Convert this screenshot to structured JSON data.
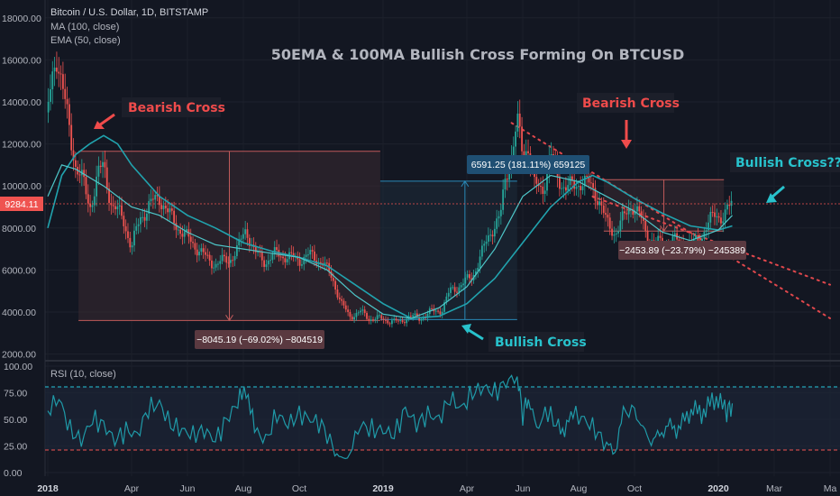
{
  "chart_data": {
    "type": "line",
    "header": {
      "symbol": "Bitcoin / U.S. Dollar, 1D, BITSTAMP",
      "indicators": [
        "MA (100, close)",
        "EMA (50, close)"
      ]
    },
    "title": "50EMA & 100MA Bullish Cross Forming On BTCUSD",
    "price_axis": {
      "ticks": [
        "18000.00",
        "16000.00",
        "14000.00",
        "12000.00",
        "10000.00",
        "8000.00",
        "6000.00",
        "4000.00",
        "2000.00"
      ],
      "values": [
        18000,
        16000,
        14000,
        12000,
        10000,
        8000,
        6000,
        4000,
        2000
      ],
      "range": [
        1800,
        18600
      ],
      "current_price": "9284.11",
      "current_value": 9284.11
    },
    "rsi_axis": {
      "ticks": [
        "100.00",
        "75.00",
        "50.00",
        "25.00",
        "0.00"
      ],
      "values": [
        100,
        75,
        50,
        25,
        0
      ],
      "upper_band": 80,
      "lower_band": 20
    },
    "rsi_label": "RSI (10, close)",
    "time_axis": {
      "labels": [
        "2018",
        "Apr",
        "Jun",
        "Aug",
        "Oct",
        "2019",
        "Apr",
        "Jun",
        "Aug",
        "Oct",
        "2020",
        "Mar",
        "Ma"
      ],
      "months": [
        0,
        3,
        5,
        7,
        9,
        12,
        15,
        17,
        19,
        21,
        24,
        26,
        28
      ]
    },
    "series": [
      {
        "kind": "candles",
        "close": [
          [
            0,
            13500
          ],
          [
            0.3,
            16500
          ],
          [
            0.6,
            14000
          ],
          [
            1.0,
            11000
          ],
          [
            1.3,
            10000
          ],
          [
            1.5,
            9000
          ],
          [
            1.8,
            10500
          ],
          [
            2.0,
            11000
          ],
          [
            2.3,
            9000
          ],
          [
            2.7,
            8500
          ],
          [
            3.0,
            7000
          ],
          [
            3.3,
            8500
          ],
          [
            3.6,
            9000
          ],
          [
            4.0,
            9500
          ],
          [
            4.3,
            8700
          ],
          [
            4.7,
            8000
          ],
          [
            5.0,
            7500
          ],
          [
            5.4,
            7000
          ],
          [
            5.7,
            6500
          ],
          [
            6.0,
            6300
          ],
          [
            6.5,
            6500
          ],
          [
            6.8,
            7000
          ],
          [
            7.1,
            8000
          ],
          [
            7.4,
            6800
          ],
          [
            7.8,
            6400
          ],
          [
            8.2,
            6800
          ],
          [
            8.6,
            6600
          ],
          [
            9.0,
            6500
          ],
          [
            9.4,
            6700
          ],
          [
            9.8,
            6400
          ],
          [
            10.2,
            5600
          ],
          [
            10.5,
            4400
          ],
          [
            10.8,
            3800
          ],
          [
            11.2,
            4000
          ],
          [
            11.5,
            3700
          ],
          [
            11.8,
            3700
          ],
          [
            12.2,
            3600
          ],
          [
            12.6,
            3500
          ],
          [
            12.9,
            3800
          ],
          [
            13.3,
            3700
          ],
          [
            13.7,
            4000
          ],
          [
            14.1,
            4100
          ],
          [
            14.4,
            5000
          ],
          [
            14.8,
            5300
          ],
          [
            15.2,
            5700
          ],
          [
            15.6,
            7000
          ],
          [
            15.9,
            8000
          ],
          [
            16.2,
            8500
          ],
          [
            16.4,
            10500
          ],
          [
            16.6,
            11500
          ],
          [
            16.8,
            13000
          ],
          [
            17.0,
            11500
          ],
          [
            17.2,
            12000
          ],
          [
            17.4,
            10000
          ],
          [
            17.7,
            9800
          ],
          [
            18.0,
            11500
          ],
          [
            18.2,
            10500
          ],
          [
            18.5,
            10000
          ],
          [
            18.8,
            9900
          ],
          [
            19.1,
            10300
          ],
          [
            19.4,
            10000
          ],
          [
            19.7,
            9500
          ],
          [
            20.0,
            8200
          ],
          [
            20.3,
            7800
          ],
          [
            20.6,
            8400
          ],
          [
            20.9,
            9200
          ],
          [
            21.2,
            8500
          ],
          [
            21.5,
            7500
          ],
          [
            21.8,
            7300
          ],
          [
            22.1,
            7200
          ],
          [
            22.4,
            7400
          ],
          [
            22.7,
            7300
          ],
          [
            23.0,
            7200
          ],
          [
            23.3,
            7500
          ],
          [
            23.6,
            8000
          ],
          [
            23.9,
            8800
          ],
          [
            24.2,
            8400
          ],
          [
            24.5,
            9300
          ]
        ]
      },
      {
        "kind": "moving-average-100",
        "points": [
          [
            0,
            8000
          ],
          [
            0.5,
            10500
          ],
          [
            1.0,
            11500
          ],
          [
            1.5,
            12000
          ],
          [
            2.0,
            12400
          ],
          [
            2.5,
            12000
          ],
          [
            3.0,
            11000
          ],
          [
            4.0,
            9500
          ],
          [
            5.0,
            8600
          ],
          [
            6.0,
            8000
          ],
          [
            7.0,
            7300
          ],
          [
            8.0,
            6900
          ],
          [
            9.0,
            6600
          ],
          [
            10.0,
            6200
          ],
          [
            11.0,
            5300
          ],
          [
            12.0,
            4400
          ],
          [
            13.0,
            3700
          ],
          [
            14.0,
            3800
          ],
          [
            15.0,
            4400
          ],
          [
            16.0,
            5600
          ],
          [
            17.0,
            7300
          ],
          [
            18.0,
            9000
          ],
          [
            19.0,
            10200
          ],
          [
            19.5,
            10500
          ],
          [
            20.0,
            10200
          ],
          [
            21.0,
            9400
          ],
          [
            22.0,
            8700
          ],
          [
            23.0,
            8100
          ],
          [
            24.0,
            7900
          ],
          [
            24.5,
            8100
          ]
        ]
      },
      {
        "kind": "ema-50",
        "points": [
          [
            0,
            9500
          ],
          [
            0.5,
            11000
          ],
          [
            1.0,
            10800
          ],
          [
            2.0,
            10000
          ],
          [
            3.0,
            9000
          ],
          [
            4.0,
            8600
          ],
          [
            5.0,
            7800
          ],
          [
            6.0,
            7200
          ],
          [
            7.0,
            7000
          ],
          [
            8.0,
            6800
          ],
          [
            9.0,
            6600
          ],
          [
            10.0,
            6000
          ],
          [
            11.0,
            4800
          ],
          [
            12.0,
            3900
          ],
          [
            13.0,
            3700
          ],
          [
            14.0,
            4200
          ],
          [
            15.0,
            5200
          ],
          [
            16.0,
            7000
          ],
          [
            17.0,
            9500
          ],
          [
            18.0,
            10500
          ],
          [
            19.0,
            10200
          ],
          [
            20.0,
            9500
          ],
          [
            21.0,
            8800
          ],
          [
            22.0,
            7800
          ],
          [
            23.0,
            7400
          ],
          [
            24.0,
            7900
          ],
          [
            24.5,
            8600
          ]
        ]
      },
      {
        "kind": "rsi",
        "points": [
          [
            0,
            58
          ],
          [
            0.4,
            70
          ],
          [
            0.8,
            40
          ],
          [
            1.2,
            30
          ],
          [
            1.6,
            50
          ],
          [
            2.0,
            45
          ],
          [
            2.4,
            30
          ],
          [
            2.8,
            40
          ],
          [
            3.2,
            35
          ],
          [
            3.6,
            60
          ],
          [
            4.0,
            65
          ],
          [
            4.4,
            45
          ],
          [
            4.8,
            40
          ],
          [
            5.2,
            35
          ],
          [
            5.6,
            40
          ],
          [
            6.0,
            30
          ],
          [
            6.4,
            50
          ],
          [
            6.8,
            65
          ],
          [
            7.1,
            80
          ],
          [
            7.4,
            40
          ],
          [
            7.8,
            30
          ],
          [
            8.2,
            55
          ],
          [
            8.6,
            45
          ],
          [
            9.0,
            55
          ],
          [
            9.4,
            50
          ],
          [
            9.8,
            45
          ],
          [
            10.2,
            25
          ],
          [
            10.5,
            10
          ],
          [
            10.8,
            20
          ],
          [
            11.2,
            45
          ],
          [
            11.6,
            40
          ],
          [
            12.0,
            40
          ],
          [
            12.4,
            35
          ],
          [
            12.8,
            60
          ],
          [
            13.2,
            45
          ],
          [
            13.6,
            55
          ],
          [
            14.0,
            50
          ],
          [
            14.4,
            70
          ],
          [
            14.8,
            60
          ],
          [
            15.2,
            75
          ],
          [
            15.6,
            80
          ],
          [
            16.0,
            75
          ],
          [
            16.4,
            85
          ],
          [
            16.8,
            90
          ],
          [
            17.0,
            55
          ],
          [
            17.2,
            70
          ],
          [
            17.5,
            40
          ],
          [
            17.8,
            60
          ],
          [
            18.2,
            45
          ],
          [
            18.5,
            40
          ],
          [
            18.8,
            55
          ],
          [
            19.2,
            50
          ],
          [
            19.6,
            40
          ],
          [
            20.0,
            25
          ],
          [
            20.3,
            20
          ],
          [
            20.6,
            55
          ],
          [
            21.0,
            60
          ],
          [
            21.3,
            40
          ],
          [
            21.6,
            30
          ],
          [
            21.9,
            35
          ],
          [
            22.2,
            45
          ],
          [
            22.5,
            40
          ],
          [
            22.8,
            50
          ],
          [
            23.1,
            60
          ],
          [
            23.4,
            55
          ],
          [
            23.7,
            65
          ],
          [
            24.0,
            70
          ],
          [
            24.3,
            55
          ],
          [
            24.5,
            65
          ]
        ]
      },
      {
        "kind": "descending-trendline",
        "points": [
          [
            16.6,
            13000
          ],
          [
            28.0,
            3700
          ]
        ]
      },
      {
        "kind": "descending-trendline",
        "points": [
          [
            19.5,
            9500
          ],
          [
            28.0,
            5300
          ]
        ]
      }
    ],
    "annotations": {
      "bearish_cross_1": "Bearish Cross",
      "bearish_cross_2": "Bearish Cross",
      "bullish_cross_1": "Bullish Cross",
      "bullish_cross_2": "Bullish Cross???",
      "measure_drop_1": "−8045.19 (−69.02%) −804519",
      "measure_rise": "6591.25 (181.11%) 659125",
      "measure_drop_2": "−2453.89 (−23.79%) −245389"
    },
    "measure_boxes": [
      {
        "from_month": 1.1,
        "to_month": 11.9,
        "from_value": 11650,
        "to_value": 3600
      },
      {
        "from_month": 11.9,
        "to_month": 16.8,
        "from_value": 3640,
        "to_value": 10230
      },
      {
        "from_month": 19.9,
        "to_month": 24.2,
        "from_value": 10300,
        "to_value": 7850
      }
    ],
    "colors": {
      "background": "#131722",
      "up": "#26a69a",
      "down": "#ef5350",
      "ma": "#21a3ae",
      "ema": "#4ec7c9",
      "rsi": "#1f9aa8",
      "bearish_text": "#ef4b4b",
      "bullish_text": "#28c2cc",
      "title": "#b2b5be",
      "axis_text": "#b2b5be",
      "drop_box_fill": "#5a3940",
      "rise_box_fill": "#1f4f73"
    }
  }
}
